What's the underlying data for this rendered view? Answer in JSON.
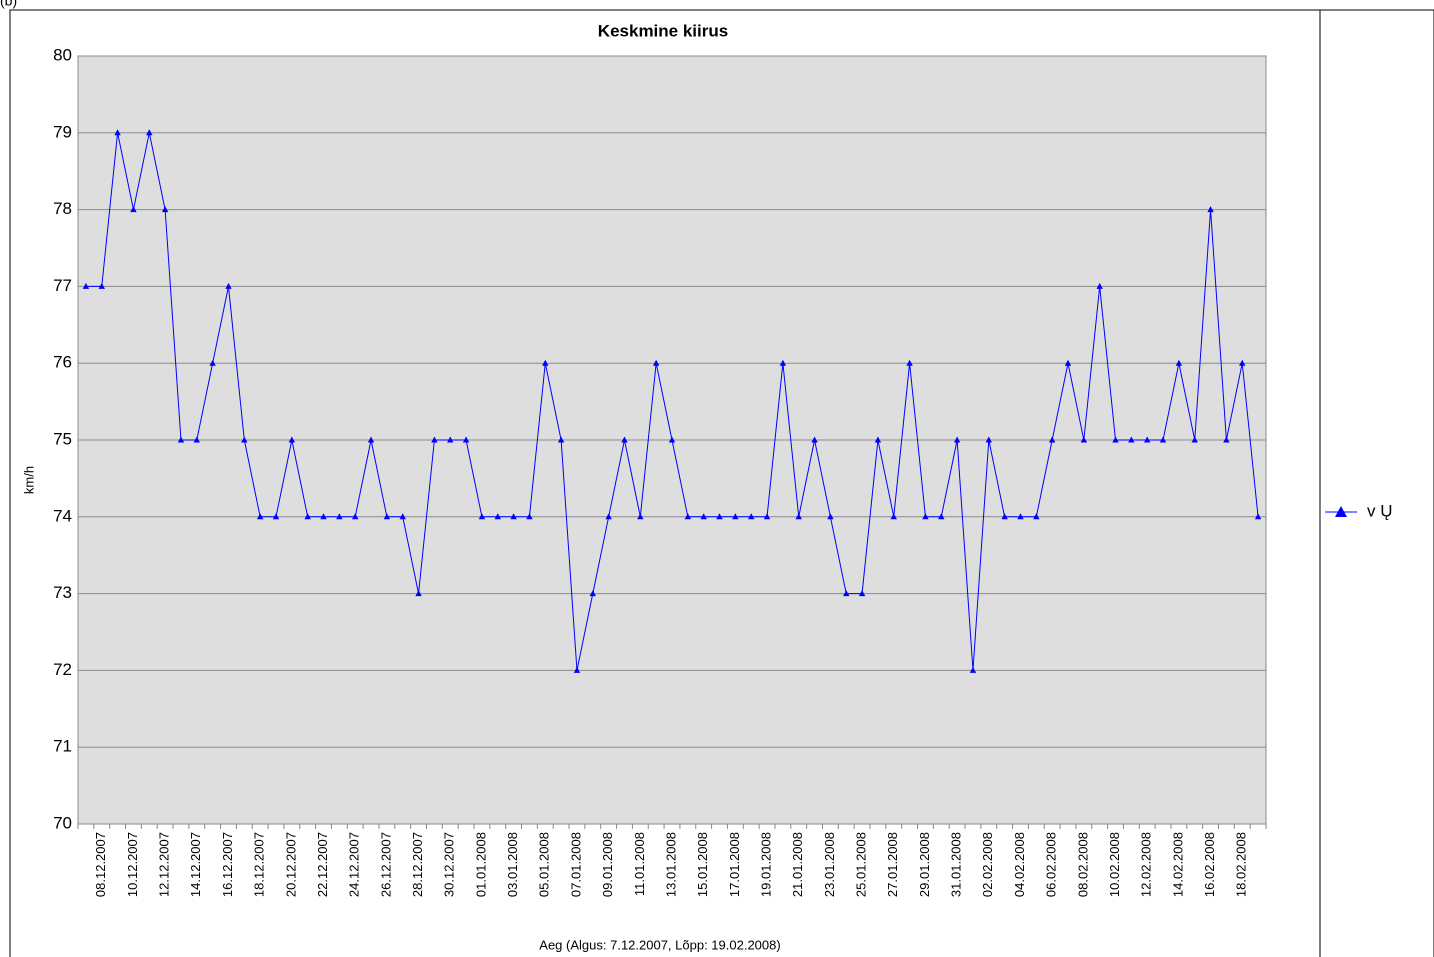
{
  "chart_data": {
    "type": "line",
    "label": "(b)",
    "title": "Keskmine kiirus",
    "y_label": "km/h",
    "x_label": "Aeg (Algus: 7.12.2007, Lõpp: 19.02.2008)",
    "categories": [
      null,
      "08.12.2007",
      null,
      "10.12.2007",
      null,
      "12.12.2007",
      null,
      "14.12.2007",
      null,
      "16.12.2007",
      null,
      "18.12.2007",
      null,
      "20.12.2007",
      null,
      "22.12.2007",
      null,
      "24.12.2007",
      null,
      "26.12.2007",
      null,
      "28.12.2007",
      null,
      "30.12.2007",
      null,
      "01.01.2008",
      null,
      "03.01.2008",
      null,
      "05.01.2008",
      null,
      "07.01.2008",
      null,
      "09.01.2008",
      null,
      "11.01.2008",
      null,
      "13.01.2008",
      null,
      "15.01.2008",
      null,
      "17.01.2008",
      null,
      "19.01.2008",
      null,
      "21.01.2008",
      null,
      "23.01.2008",
      null,
      "25.01.2008",
      null,
      "27.01.2008",
      null,
      "29.01.2008",
      null,
      "31.01.2008",
      null,
      "02.02.2008",
      null,
      "04.02.2008",
      null,
      "06.02.2008",
      null,
      "08.02.2008",
      null,
      "10.02.2008",
      null,
      "12.02.2008",
      null,
      "14.02.2008",
      null,
      "16.02.2008",
      null,
      "18.02.2008",
      null
    ],
    "series": [
      {
        "name": "v Ų",
        "color": "#0000ff",
        "values": [
          77,
          77,
          79,
          78,
          79,
          78,
          75,
          75,
          76,
          77,
          75,
          74,
          74,
          75,
          74,
          74,
          74,
          74,
          75,
          74,
          74,
          73,
          75,
          75,
          75,
          74,
          74,
          74,
          74,
          76,
          75,
          72,
          73,
          74,
          75,
          74,
          76,
          75,
          74,
          74,
          74,
          74,
          74,
          74,
          76,
          74,
          75,
          74,
          73,
          73,
          75,
          74,
          76,
          74,
          74,
          75,
          72,
          75,
          74,
          74,
          74,
          75,
          76,
          75,
          77,
          75,
          75,
          75,
          75,
          76,
          75,
          78,
          75,
          76,
          74
        ]
      }
    ],
    "ylim": [
      70,
      80
    ],
    "yticks": [
      70,
      71,
      72,
      73,
      74,
      75,
      76,
      77,
      78,
      79,
      80
    ],
    "grid": true,
    "legend": "right"
  }
}
